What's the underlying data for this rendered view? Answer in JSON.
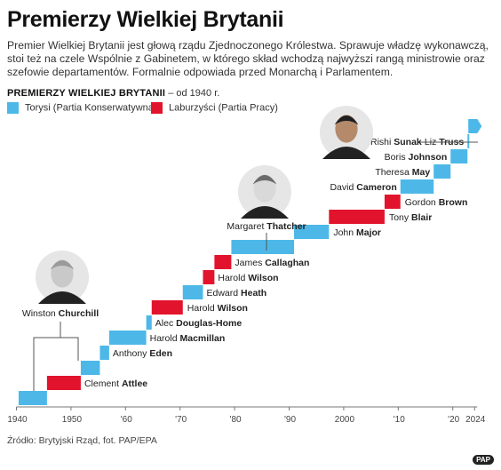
{
  "header": {
    "title": "Premierzy Wielkiej Brytanii",
    "intro": "Premier Wielkiej Brytanii jest głową rządu Zjednoczonego Królestwa. Sprawuje władzę wykonawczą, stoi też na czele Wspólnie z Gabinetem, w którego skład wchodzą najwyższi rangą ministrowie oraz szefowie departamentów. Formalnie odpowiada przed Monarchą i Parlamentem.",
    "chart_title": "PREMIERZY WIELKIEJ BRYTANII",
    "chart_subtitle": "– od 1940 r."
  },
  "legend": [
    {
      "label": "Torysi (Partia Konserwatywna)",
      "color": "#4db8e8"
    },
    {
      "label": "Laburzyści (Partia Pracy)",
      "color": "#e2142d"
    }
  ],
  "footer": {
    "source": "Źródło: Brytyjski Rząd, fot. PAP/EPA",
    "logo": "PAP"
  },
  "chart_data": {
    "type": "bar",
    "subtype": "gantt-staircase",
    "title": "PREMIERZY WIELKIEJ BRYTANII",
    "subtitle": "– od 1940 r.",
    "x_ticks": [
      {
        "value": 1940,
        "label": "1940"
      },
      {
        "value": 1950,
        "label": "1950"
      },
      {
        "value": 1960,
        "label": "'60"
      },
      {
        "value": 1970,
        "label": "'70"
      },
      {
        "value": 1980,
        "label": "'80"
      },
      {
        "value": 1990,
        "label": "'90"
      },
      {
        "value": 2000,
        "label": "2000"
      },
      {
        "value": 2010,
        "label": "'10"
      },
      {
        "value": 2020,
        "label": "'20"
      },
      {
        "value": 2024,
        "label": "2024"
      }
    ],
    "xlim": [
      1940,
      2024
    ],
    "grid": false,
    "legend_position": "top-left",
    "ministers": [
      {
        "first": "Winston",
        "last": "Churchill",
        "start": 1940.4,
        "end": 1945.6,
        "party": "con"
      },
      {
        "first": "Clement",
        "last": "Attlee",
        "start": 1945.6,
        "end": 1951.8,
        "party": "lab"
      },
      {
        "first": "",
        "last": "",
        "start": 1951.8,
        "end": 1955.3,
        "party": "con"
      },
      {
        "first": "Anthony",
        "last": "Eden",
        "start": 1955.3,
        "end": 1957.0,
        "party": "con"
      },
      {
        "first": "Harold",
        "last": "Macmillan",
        "start": 1957.0,
        "end": 1963.8,
        "party": "con"
      },
      {
        "first": "Alec",
        "last": "Douglas-Home",
        "start": 1963.8,
        "end": 1964.8,
        "party": "con"
      },
      {
        "first": "Harold",
        "last": "Wilson",
        "start": 1964.8,
        "end": 1970.5,
        "party": "lab"
      },
      {
        "first": "Edward",
        "last": "Heath",
        "start": 1970.5,
        "end": 1974.2,
        "party": "con"
      },
      {
        "first": "Harold",
        "last": "Wilson",
        "start": 1974.2,
        "end": 1976.3,
        "party": "lab"
      },
      {
        "first": "James",
        "last": "Callaghan",
        "start": 1976.3,
        "end": 1979.4,
        "party": "lab"
      },
      {
        "first": "Margaret",
        "last": "Thatcher",
        "start": 1979.4,
        "end": 1990.9,
        "party": "con"
      },
      {
        "first": "John",
        "last": "Major",
        "start": 1990.9,
        "end": 1997.3,
        "party": "con"
      },
      {
        "first": "Tony",
        "last": "Blair",
        "start": 1997.3,
        "end": 2007.5,
        "party": "lab"
      },
      {
        "first": "Gordon",
        "last": "Brown",
        "start": 2007.5,
        "end": 2010.4,
        "party": "lab"
      },
      {
        "first": "David",
        "last": "Cameron",
        "start": 2010.4,
        "end": 2016.5,
        "party": "con"
      },
      {
        "first": "Theresa",
        "last": "May",
        "start": 2016.5,
        "end": 2019.6,
        "party": "con"
      },
      {
        "first": "Boris",
        "last": "Johnson",
        "start": 2019.6,
        "end": 2022.7,
        "party": "con"
      },
      {
        "first": "Liz",
        "last": "Truss",
        "start": 2022.7,
        "end": 2022.85,
        "party": "con"
      },
      {
        "first": "Rishi",
        "last": "Sunak",
        "start": 2022.85,
        "end": 2024.5,
        "party": "con"
      }
    ],
    "photos": [
      {
        "first": "Winston",
        "last": "Churchill"
      },
      {
        "first": "Margaret",
        "last": "Thatcher"
      },
      {
        "first": "Rishi",
        "last": "Sunak"
      }
    ]
  }
}
